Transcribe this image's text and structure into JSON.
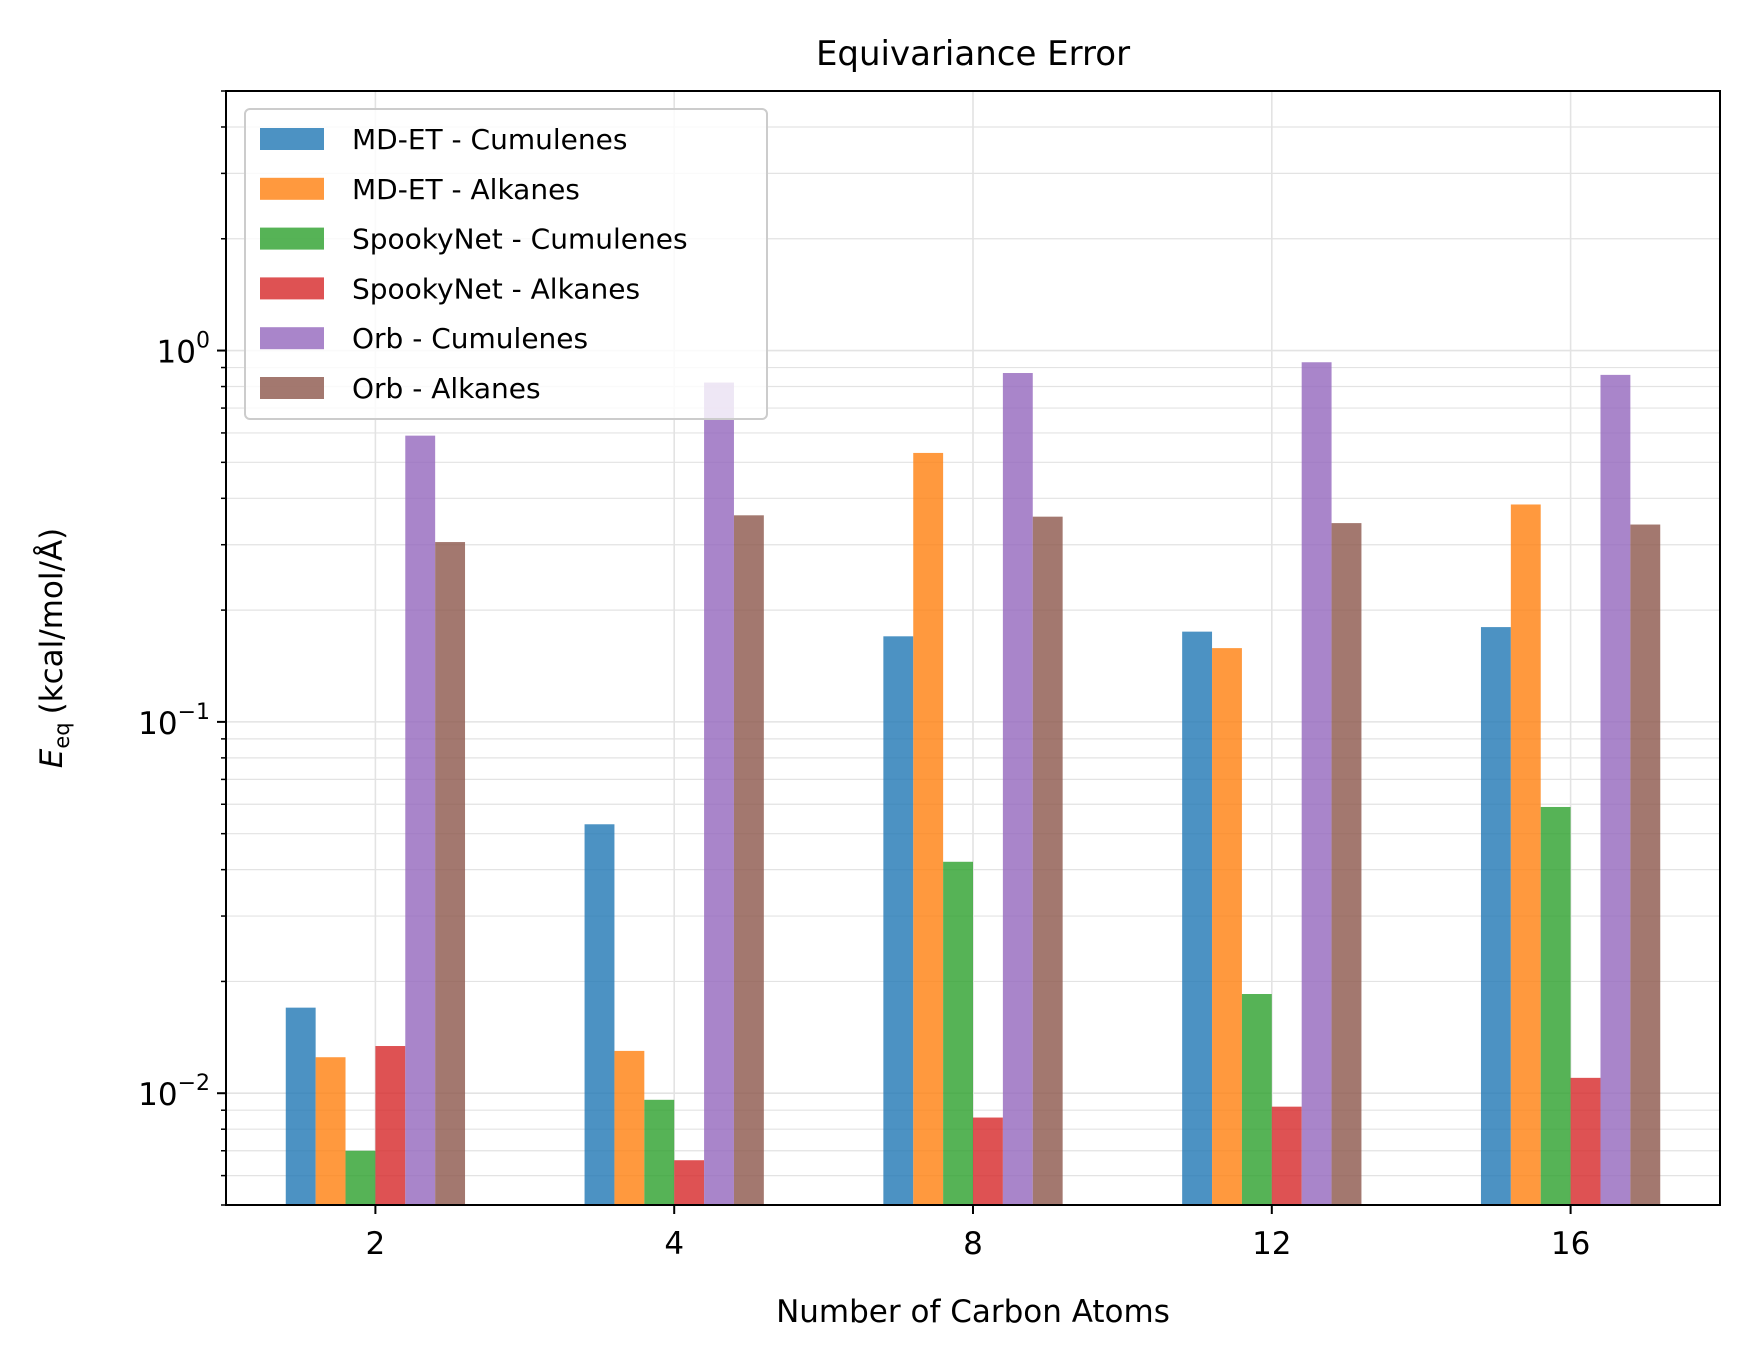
{
  "chart_data": {
    "type": "bar",
    "title": "Equivariance Error",
    "xlabel": "Number of Carbon Atoms",
    "ylabel": {
      "symbol": "E",
      "subscript": "eq",
      "unit": "(kcal/mol/Å)"
    },
    "yscale": "log",
    "ylim": [
      0.005,
      5
    ],
    "categories": [
      "2",
      "4",
      "8",
      "12",
      "16"
    ],
    "yticks": [
      {
        "value": 1,
        "base": "10",
        "exp": "0"
      },
      {
        "value": 0.1,
        "base": "10",
        "exp": "−1"
      },
      {
        "value": 0.01,
        "base": "10",
        "exp": "−2"
      }
    ],
    "grid": true,
    "legend_position": "top-left",
    "series": [
      {
        "name": "MD-ET - Cumulenes",
        "color": "#1f77b4",
        "values": [
          0.017,
          0.053,
          0.17,
          0.175,
          0.18
        ]
      },
      {
        "name": "MD-ET - Alkanes",
        "color": "#ff7f0e",
        "values": [
          0.0125,
          0.013,
          0.53,
          0.158,
          0.385
        ]
      },
      {
        "name": "SpookyNet - Cumulenes",
        "color": "#2ca02c",
        "values": [
          0.007,
          0.0096,
          0.042,
          0.0185,
          0.059
        ]
      },
      {
        "name": "SpookyNet - Alkanes",
        "color": "#d62728",
        "values": [
          0.0134,
          0.0066,
          0.0086,
          0.0092,
          0.011
        ]
      },
      {
        "name": "Orb - Cumulenes",
        "color": "#9467bd",
        "values": [
          0.59,
          0.82,
          0.87,
          0.93,
          0.86
        ]
      },
      {
        "name": "Orb - Alkanes",
        "color": "#8c564b",
        "values": [
          0.305,
          0.36,
          0.357,
          0.343,
          0.34
        ]
      }
    ]
  }
}
